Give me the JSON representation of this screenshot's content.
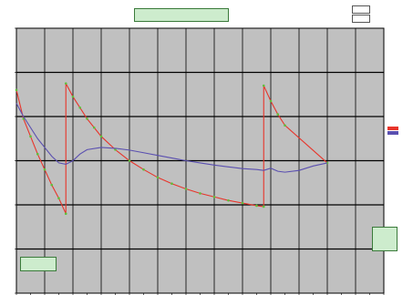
{
  "chart_data": {
    "type": "line",
    "title": "",
    "subtitle": "",
    "xlabel": "",
    "ylabel": "",
    "xlim": [
      0,
      26
    ],
    "ylim": [
      0,
      6
    ],
    "grid": true,
    "background": "#c0c0c0",
    "x_ticks": [
      0,
      1,
      2,
      3,
      4,
      5,
      6,
      7,
      8,
      9,
      10,
      11,
      12,
      13,
      14,
      15,
      16,
      17,
      18,
      19,
      20,
      21,
      22,
      23,
      24,
      25,
      26
    ],
    "y_ticks": [
      0,
      1,
      2,
      3,
      4,
      5,
      6
    ],
    "series": [
      {
        "color": "#e8342a",
        "marker_color": "#5fbf3a",
        "x": [
          0,
          0.5,
          1.0,
          1.5,
          2.0,
          2.5,
          3.0,
          3.5,
          3.5,
          4.0,
          4.5,
          5.0,
          5.5,
          6.0,
          7.0,
          8.0,
          9.0,
          10.0,
          11.0,
          12.0,
          13.0,
          14.0,
          15.0,
          16.0,
          17.0,
          17.5,
          17.5,
          18.0,
          18.5,
          19.0,
          22.0
        ],
        "y": [
          4.6,
          3.95,
          3.55,
          3.15,
          2.8,
          2.45,
          2.15,
          1.8,
          4.75,
          4.45,
          4.2,
          3.95,
          3.75,
          3.55,
          3.25,
          3.0,
          2.8,
          2.62,
          2.48,
          2.36,
          2.26,
          2.18,
          2.1,
          2.04,
          1.98,
          1.96,
          4.7,
          4.35,
          4.05,
          3.8,
          2.95
        ]
      },
      {
        "color": "#5a4fb0",
        "x": [
          0,
          0.5,
          1.0,
          1.5,
          2.0,
          2.5,
          3.0,
          3.5,
          4.0,
          4.5,
          5.0,
          6.0,
          7.0,
          8.0,
          9.0,
          10.0,
          11.0,
          12.0,
          13.0,
          14.0,
          15.0,
          16.0,
          17.0,
          17.5,
          18.0,
          18.5,
          19.0,
          20.0,
          21.0,
          22.0
        ],
        "y": [
          4.3,
          4.0,
          3.75,
          3.5,
          3.3,
          3.1,
          2.95,
          2.92,
          3.0,
          3.15,
          3.25,
          3.3,
          3.28,
          3.24,
          3.18,
          3.12,
          3.06,
          3.0,
          2.95,
          2.9,
          2.86,
          2.82,
          2.8,
          2.78,
          2.83,
          2.76,
          2.74,
          2.78,
          2.88,
          2.95
        ]
      }
    ]
  },
  "annotations": {
    "title_lines": [
      "",
      ""
    ],
    "note_top_lines": [
      "",
      "",
      ""
    ],
    "note_bottom_left_lines": [
      "",
      "",
      ""
    ],
    "note_right_lines": [
      "",
      "",
      "",
      "",
      ""
    ],
    "corner_top": "",
    "corner_second": "",
    "callout_right": "",
    "peak_labels": [
      "",
      "",
      ""
    ]
  }
}
